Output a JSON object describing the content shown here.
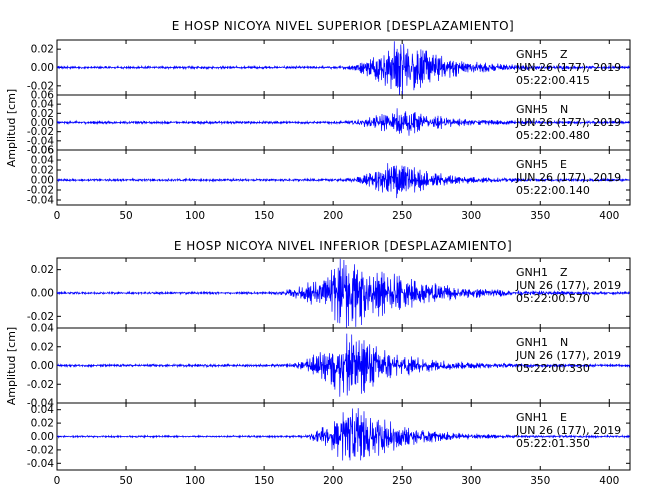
{
  "colors": {
    "trace": "#0000ff",
    "axis": "#000000",
    "background": "#ffffff"
  },
  "chart_data": [
    {
      "type": "line",
      "title": "E HOSP NICOYA NIVEL SUPERIOR [DESPLAZAMIENTO]",
      "xlabel": "",
      "ylabel": "Amplitud [cm]",
      "xlim": [
        0,
        415
      ],
      "x_ticks": [
        "0",
        "50",
        "100",
        "150",
        "200",
        "250",
        "300",
        "350",
        "400"
      ],
      "grid": false,
      "panels": [
        {
          "ylim": [
            -0.03,
            0.03
          ],
          "y_ticks": [
            "0.02",
            "0.00",
            "-0.02"
          ],
          "envelope": {
            "onset": 200,
            "peak": 249,
            "peak_amp": 0.03,
            "decay": 28,
            "noise": 0.0012
          },
          "annotation": {
            "station": "GNH5",
            "component": "Z",
            "date": "JUN 26 (177), 2019",
            "time": "05:22:00.415"
          }
        },
        {
          "ylim": [
            -0.06,
            0.06
          ],
          "y_ticks": [
            "0.06",
            "0.04",
            "0.02",
            "0.00",
            "-0.02",
            "-0.04",
            "-0.06"
          ],
          "envelope": {
            "onset": 200,
            "peak": 248,
            "peak_amp": 0.03,
            "decay": 26,
            "noise": 0.0025
          },
          "annotation": {
            "station": "GNH5",
            "component": "N",
            "date": "JUN 26 (177), 2019",
            "time": "05:22:00.480"
          }
        },
        {
          "ylim": [
            -0.05,
            0.06
          ],
          "y_ticks": [
            "0.06",
            "0.04",
            "0.02",
            "0.00",
            "-0.02",
            "-0.04"
          ],
          "envelope": {
            "onset": 200,
            "peak": 245,
            "peak_amp": 0.035,
            "decay": 25,
            "noise": 0.002
          },
          "annotation": {
            "station": "GNH5",
            "component": "E",
            "date": "JUN 26 (177), 2019",
            "time": "05:22:00.140"
          }
        }
      ]
    },
    {
      "type": "line",
      "title": "E HOSP NICOYA NIVEL INFERIOR [DESPLAZAMIENTO]",
      "xlabel": "",
      "ylabel": "Amplitud [cm]",
      "xlim": [
        0,
        415
      ],
      "x_ticks": [
        "0",
        "50",
        "100",
        "150",
        "200",
        "250",
        "300",
        "350",
        "400"
      ],
      "grid": false,
      "panels": [
        {
          "ylim": [
            -0.03,
            0.03
          ],
          "y_ticks": [
            "0.02",
            "0.00",
            "-0.02"
          ],
          "envelope": {
            "onset": 150,
            "peak": 213,
            "peak_amp": 0.03,
            "decay": 38,
            "noise": 0.0008
          },
          "annotation": {
            "station": "GNH1",
            "component": "Z",
            "date": "JUN 26 (177), 2019",
            "time": "05:22:00.570"
          }
        },
        {
          "ylim": [
            -0.04,
            0.04
          ],
          "y_ticks": [
            "0.04",
            "0.02",
            "0.00",
            "-0.02",
            "-0.04"
          ],
          "envelope": {
            "onset": 160,
            "peak": 210,
            "peak_amp": 0.035,
            "decay": 30,
            "noise": 0.0012
          },
          "annotation": {
            "station": "GNH1",
            "component": "N",
            "date": "JUN 26 (177), 2019",
            "time": "05:22:00.330"
          }
        },
        {
          "ylim": [
            -0.05,
            0.05
          ],
          "y_ticks": [
            "0.04",
            "0.02",
            "0.00",
            "-0.02",
            "-0.04"
          ],
          "envelope": {
            "onset": 170,
            "peak": 213,
            "peak_amp": 0.045,
            "decay": 30,
            "noise": 0.0012
          },
          "annotation": {
            "station": "GNH1",
            "component": "E",
            "date": "JUN 26 (177), 2019",
            "time": "05:22:01.350"
          }
        }
      ]
    }
  ]
}
